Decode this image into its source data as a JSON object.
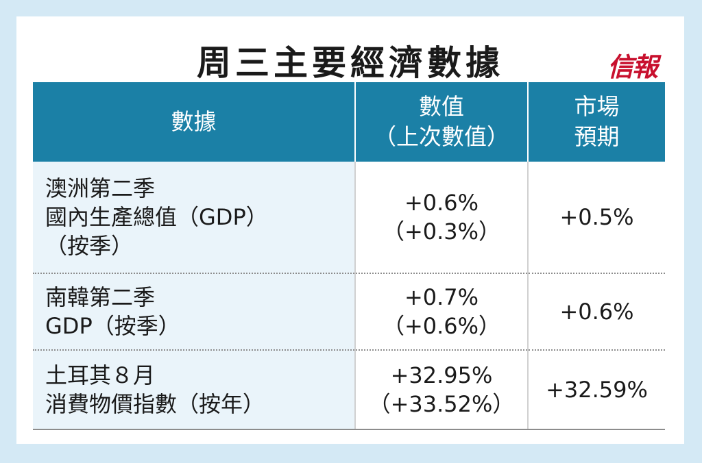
{
  "title": "周三主要經濟數據",
  "logo": "信報",
  "table": {
    "headers": {
      "col1": "數據",
      "col2": [
        "數值",
        "（上次數值）"
      ],
      "col3": [
        "市場",
        "預期"
      ]
    },
    "rows": [
      {
        "label": [
          "澳洲第二季",
          "國內生產總值（GDP）",
          "（按季）"
        ],
        "value": "+0.6%",
        "previous": "（+0.3%）",
        "expected": "+0.5%"
      },
      {
        "label": [
          "南韓第二季",
          "GDP（按季）"
        ],
        "value": "+0.7%",
        "previous": "（+0.6%）",
        "expected": "+0.6%"
      },
      {
        "label": [
          "土耳其８月",
          "消費物價指數（按年）"
        ],
        "value": "+32.95%",
        "previous": "（+33.52%）",
        "expected": "+32.59%"
      }
    ]
  }
}
